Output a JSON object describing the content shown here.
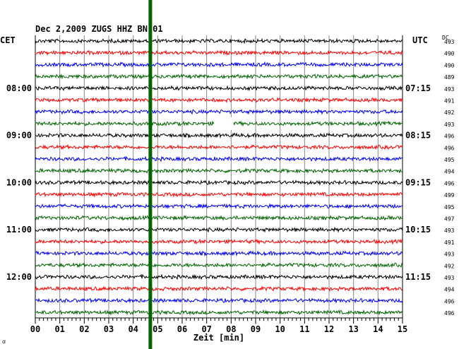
{
  "chart_data": {
    "type": "line",
    "title": "Dec 2,2009    ZUGS HHZ BN 01",
    "left_timezone": "CET",
    "right_timezone": "UTC",
    "dc_header": "DC",
    "xlabel": "Zeit [min]",
    "x_ticks": [
      "00",
      "01",
      "02",
      "03",
      "04",
      "05",
      "06",
      "07",
      "08",
      "09",
      "10",
      "11",
      "12",
      "13",
      "14",
      "15"
    ],
    "xlim": [
      0,
      15
    ],
    "grid": true,
    "trace_colors": [
      "#000000",
      "#ff0000",
      "#0000ff",
      "#006400"
    ],
    "traces": 24,
    "left_hour_labels": [
      {
        "trace": 4,
        "label": "08:00"
      },
      {
        "trace": 8,
        "label": "09:00"
      },
      {
        "trace": 12,
        "label": "10:00"
      },
      {
        "trace": 16,
        "label": "11:00"
      },
      {
        "trace": 20,
        "label": "12:00"
      }
    ],
    "right_hour_labels": [
      {
        "trace": 4,
        "label": "07:15"
      },
      {
        "trace": 8,
        "label": "08:15"
      },
      {
        "trace": 12,
        "label": "09:15"
      },
      {
        "trace": 16,
        "label": "10:15"
      },
      {
        "trace": 20,
        "label": "11:15"
      }
    ],
    "dc_values": [
      "493",
      "490",
      "490",
      "489",
      "493",
      "491",
      "492",
      "493",
      "496",
      "496",
      "495",
      "494",
      "496",
      "499",
      "495",
      "497",
      "493",
      "491",
      "493",
      "492",
      "493",
      "494",
      "496",
      "496"
    ],
    "data_gap": {
      "trace": 7,
      "x_start": 7.3,
      "x_end": 8.1
    },
    "marker": {
      "x": 4.7,
      "color": "#006400"
    },
    "footnote": "ꭤ"
  }
}
